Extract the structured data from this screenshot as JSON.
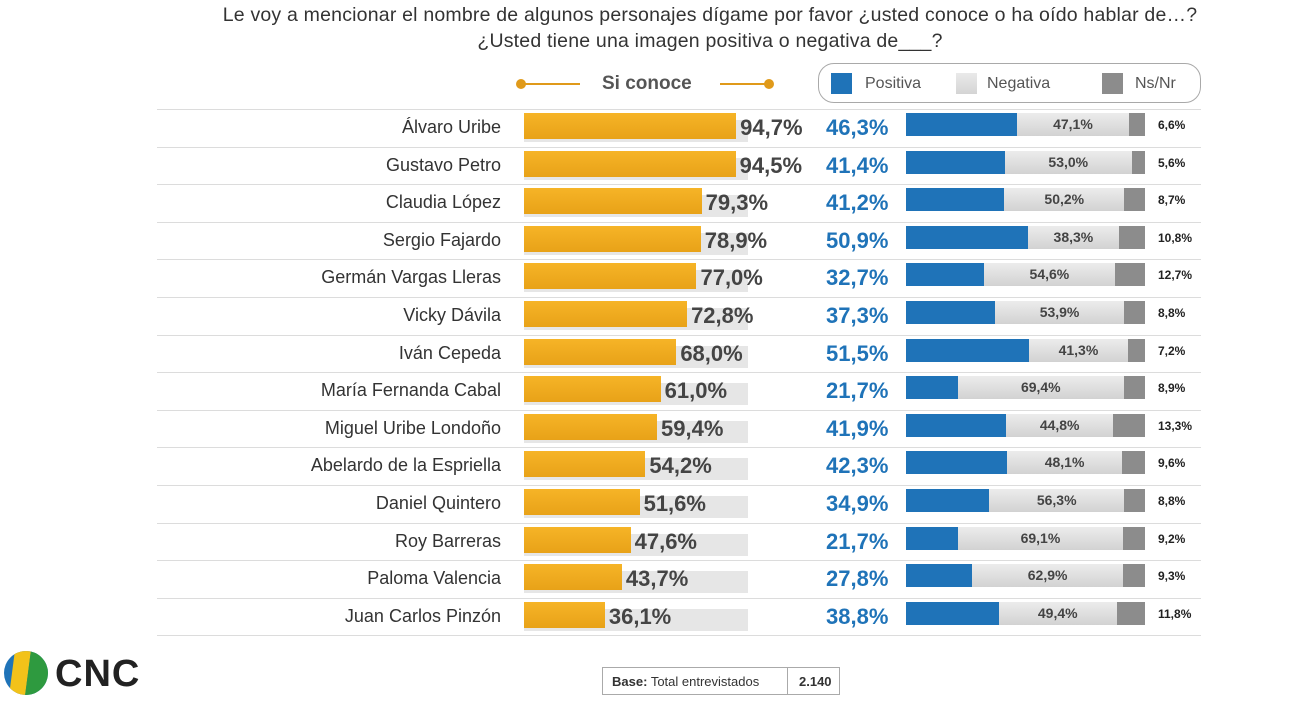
{
  "title_line1": "Le voy a mencionar el nombre de algunos personajes dígame por favor ¿usted conoce o ha oído hablar de…?",
  "title_line2": "¿Usted tiene una imagen positiva o negativa de___?",
  "legend": {
    "si_conoce": "Si conoce",
    "positiva": "Positiva",
    "negativa": "Negativa",
    "nsnr": "Ns/Nr"
  },
  "colors": {
    "si_conoce": "#f2ab1f",
    "positiva": "#1f73b8",
    "negativa": "#d9d9d9",
    "nsnr": "#8c8c8c",
    "track": "#e6e6e6"
  },
  "chart_data": {
    "type": "bar",
    "categories": [
      "Álvaro Uribe",
      "Gustavo Petro",
      "Claudia López",
      "Sergio Fajardo",
      "Germán Vargas Lleras",
      "Vicky Dávila",
      "Iván Cepeda",
      "María Fernanda Cabal",
      "Miguel Uribe Londoño",
      "Abelardo de la Espriella",
      "Daniel Quintero",
      "Roy Barreras",
      "Paloma Valencia",
      "Juan Carlos Pinzón"
    ],
    "series": [
      {
        "name": "Si conoce",
        "values": [
          94.7,
          94.5,
          79.3,
          78.9,
          77.0,
          72.8,
          68.0,
          61.0,
          59.4,
          54.2,
          51.6,
          47.6,
          43.7,
          36.1
        ],
        "labels": [
          "94,7%",
          "94,5%",
          "79,3%",
          "78,9%",
          "77,0%",
          "72,8%",
          "68,0%",
          "61,0%",
          "59,4%",
          "54,2%",
          "51,6%",
          "47,6%",
          "43,7%",
          "36,1%"
        ]
      },
      {
        "name": "Positiva",
        "values": [
          46.3,
          41.4,
          41.2,
          50.9,
          32.7,
          37.3,
          51.5,
          21.7,
          41.9,
          42.3,
          34.9,
          21.7,
          27.8,
          38.8
        ],
        "labels": [
          "46,3%",
          "41,4%",
          "41,2%",
          "50,9%",
          "32,7%",
          "37,3%",
          "51,5%",
          "21,7%",
          "41,9%",
          "42,3%",
          "34,9%",
          "21,7%",
          "27,8%",
          "38,8%"
        ]
      },
      {
        "name": "Negativa",
        "values": [
          47.1,
          53.0,
          50.2,
          38.3,
          54.6,
          53.9,
          41.3,
          69.4,
          44.8,
          48.1,
          56.3,
          69.1,
          62.9,
          49.4
        ],
        "labels": [
          "47,1%",
          "53,0%",
          "50,2%",
          "38,3%",
          "54,6%",
          "53,9%",
          "41,3%",
          "69,4%",
          "44,8%",
          "48,1%",
          "56,3%",
          "69,1%",
          "62,9%",
          "49,4%"
        ]
      },
      {
        "name": "Ns/Nr",
        "values": [
          6.6,
          5.6,
          8.7,
          10.8,
          12.7,
          8.8,
          7.2,
          8.9,
          13.3,
          9.6,
          8.8,
          9.2,
          9.3,
          11.8
        ],
        "labels": [
          "6,6%",
          "5,6%",
          "8,7%",
          "10,8%",
          "12,7%",
          "8,8%",
          "7,2%",
          "8,9%",
          "13,3%",
          "9,6%",
          "8,8%",
          "9,2%",
          "9,3%",
          "11,8%"
        ]
      }
    ],
    "xlim": [
      0,
      100
    ]
  },
  "footer": {
    "logo_text": "CNC",
    "base_label": "Base:",
    "base_desc": "Total entrevistados",
    "base_value": "2.140"
  }
}
